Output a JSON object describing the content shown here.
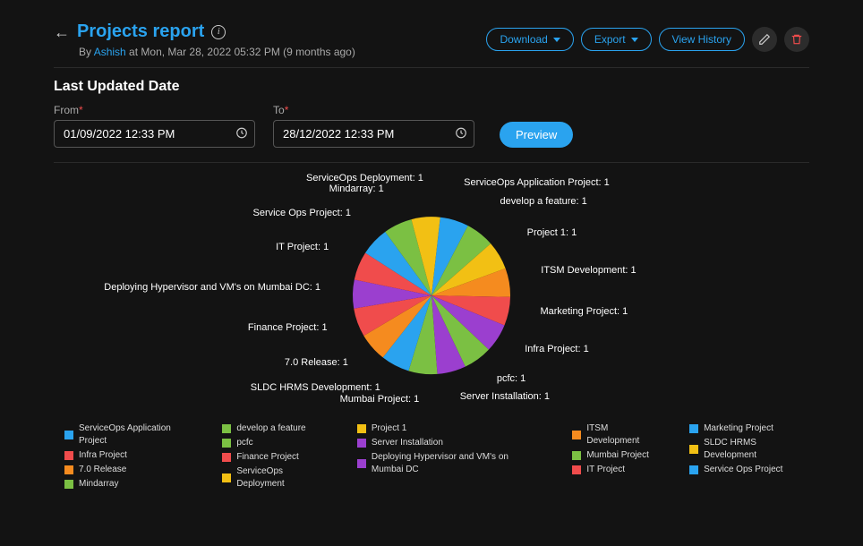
{
  "header": {
    "title": "Projects report",
    "byline_prefix": "By ",
    "author": "Ashish",
    "byline_suffix": " at Mon, Mar 28, 2022 05:32 PM (9 months ago)",
    "download_label": "Download",
    "export_label": "Export",
    "view_history_label": "View History"
  },
  "filters": {
    "section_title": "Last Updated Date",
    "from_label": "From",
    "to_label": "To",
    "from_value": "01/09/2022 12:33 PM",
    "to_value": "28/12/2022 12:33 PM",
    "preview_label": "Preview"
  },
  "chart": {
    "type": "pie",
    "radius": 88,
    "background_color": "#131313",
    "label_fontsize": 11,
    "slices": [
      {
        "name": "ServiceOps Application Project",
        "value": 1,
        "color": "#2aa3ef"
      },
      {
        "name": "develop a feature",
        "value": 1,
        "color": "#7bc043"
      },
      {
        "name": "Project 1",
        "value": 1,
        "color": "#f2c014"
      },
      {
        "name": "ITSM Development",
        "value": 1,
        "color": "#f58b1f"
      },
      {
        "name": "Marketing Project",
        "value": 1,
        "color": "#f04c4c"
      },
      {
        "name": "Infra Project",
        "value": 1,
        "color": "#9b3fcf"
      },
      {
        "name": "pcfc",
        "value": 1,
        "color": "#7bc043"
      },
      {
        "name": "Server Installation",
        "value": 1,
        "color": "#9b3fcf"
      },
      {
        "name": "Mumbai Project",
        "value": 1,
        "color": "#7bc043"
      },
      {
        "name": "SLDC HRMS Development",
        "value": 1,
        "color": "#2aa3ef"
      },
      {
        "name": "7.0 Release",
        "value": 1,
        "color": "#f58b1f"
      },
      {
        "name": "Finance Project",
        "value": 1,
        "color": "#f04c4c"
      },
      {
        "name": "Deploying Hypervisor and VM's on Mumbai DC",
        "value": 1,
        "color": "#9b3fcf"
      },
      {
        "name": "IT Project",
        "value": 1,
        "color": "#f04c4c"
      },
      {
        "name": "Service Ops Project",
        "value": 1,
        "color": "#2aa3ef"
      },
      {
        "name": "Mindarray",
        "value": 1,
        "color": "#7bc043"
      },
      {
        "name": "ServiceOps Deployment",
        "value": 1,
        "color": "#f2c014"
      }
    ]
  },
  "legend_columns": [
    [
      {
        "label": "ServiceOps Application Project",
        "color": "#2aa3ef"
      },
      {
        "label": "Infra Project",
        "color": "#f04c4c"
      },
      {
        "label": "7.0 Release",
        "color": "#f58b1f"
      },
      {
        "label": "Mindarray",
        "color": "#7bc043"
      }
    ],
    [
      {
        "label": "develop a feature",
        "color": "#7bc043"
      },
      {
        "label": "pcfc",
        "color": "#7bc043"
      },
      {
        "label": "Finance Project",
        "color": "#f04c4c"
      },
      {
        "label": "ServiceOps Deployment",
        "color": "#f2c014"
      }
    ],
    [
      {
        "label": "Project 1",
        "color": "#f2c014"
      },
      {
        "label": "Server Installation",
        "color": "#9b3fcf"
      },
      {
        "label": "Deploying Hypervisor and VM's on Mumbai DC",
        "color": "#9b3fcf"
      }
    ],
    [
      {
        "label": "ITSM Development",
        "color": "#f58b1f"
      },
      {
        "label": "Mumbai Project",
        "color": "#7bc043"
      },
      {
        "label": "IT Project",
        "color": "#f04c4c"
      }
    ],
    [
      {
        "label": "Marketing Project",
        "color": "#2aa3ef"
      },
      {
        "label": "SLDC HRMS Development",
        "color": "#f2c014"
      },
      {
        "label": "Service Ops Project",
        "color": "#2aa3ef"
      }
    ]
  ]
}
